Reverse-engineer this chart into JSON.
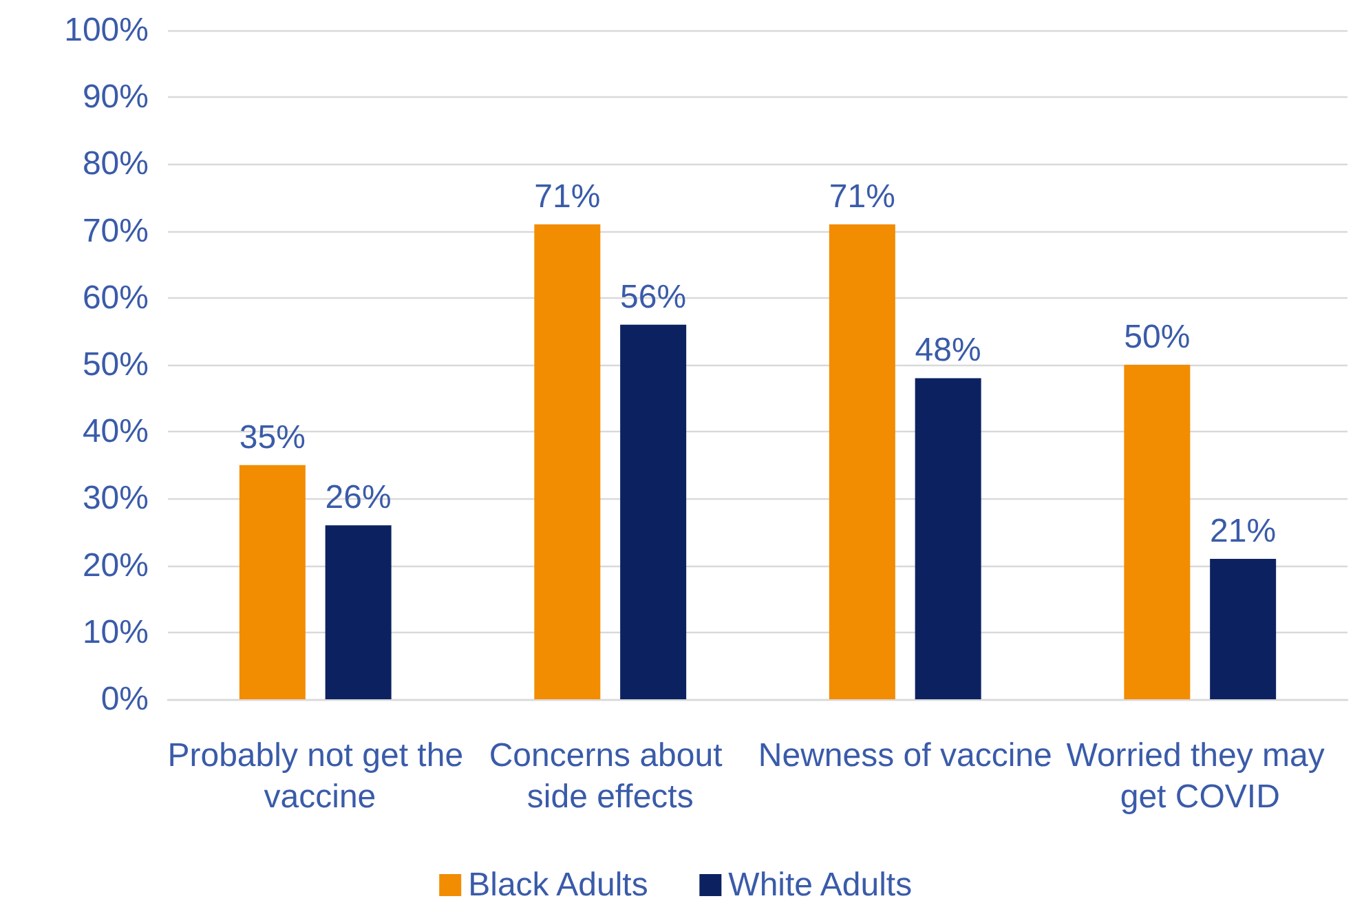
{
  "chart_data": {
    "type": "bar",
    "categories": [
      "Probably not get the vaccine",
      "Concerns about side effects",
      "Newness of vaccine",
      "Worried they may get COVID"
    ],
    "series": [
      {
        "name": "Black Adults",
        "color": "#f28c00",
        "values": [
          35,
          71,
          71,
          50
        ],
        "value_labels": [
          "35%",
          "71%",
          "71%",
          "50%"
        ]
      },
      {
        "name": "White Adults",
        "color": "#0c2260",
        "values": [
          26,
          56,
          48,
          21
        ],
        "value_labels": [
          "26%",
          "56%",
          "48%",
          "21%"
        ]
      }
    ],
    "ylim": [
      0,
      100
    ],
    "yticks": [
      {
        "value": 0,
        "label": "0%"
      },
      {
        "value": 10,
        "label": "10%"
      },
      {
        "value": 20,
        "label": "20%"
      },
      {
        "value": 30,
        "label": "30%"
      },
      {
        "value": 40,
        "label": "40%"
      },
      {
        "value": 50,
        "label": "50%"
      },
      {
        "value": 60,
        "label": "60%"
      },
      {
        "value": 70,
        "label": "70%"
      },
      {
        "value": 80,
        "label": "80%"
      },
      {
        "value": 90,
        "label": "90%"
      },
      {
        "value": 100,
        "label": "100%"
      }
    ],
    "grid": "y",
    "legend": "bottom"
  }
}
